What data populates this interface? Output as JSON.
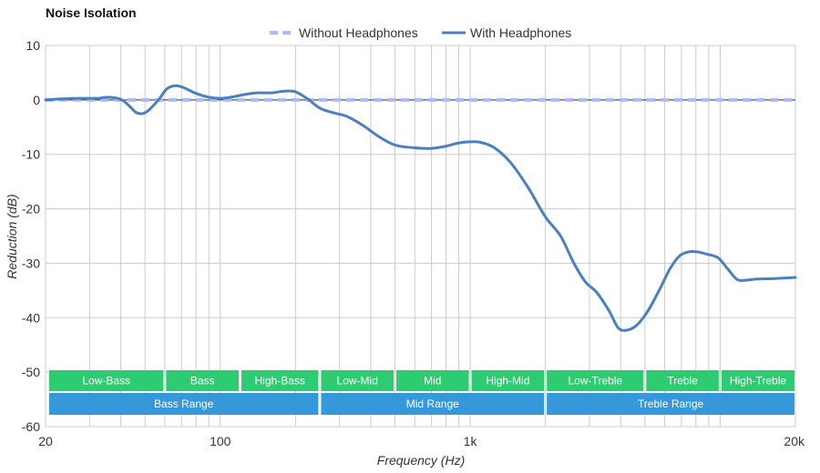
{
  "chart_data": {
    "type": "line",
    "title": "Noise Isolation",
    "xlabel": "Frequency (Hz)",
    "ylabel": "Reduction (dB)",
    "x_scale": "log",
    "xlim": [
      20,
      20000
    ],
    "ylim": [
      -60,
      10
    ],
    "x_ticks": [
      {
        "value": 20,
        "label": "20"
      },
      {
        "value": 100,
        "label": "100"
      },
      {
        "value": 1000,
        "label": "1k"
      },
      {
        "value": 20000,
        "label": "20k"
      }
    ],
    "y_ticks": [
      10,
      0,
      -10,
      -20,
      -30,
      -40,
      -50,
      -60
    ],
    "minor_x_gridlines": [
      30,
      40,
      50,
      60,
      70,
      80,
      90,
      200,
      300,
      400,
      500,
      600,
      700,
      800,
      900,
      2000,
      3000,
      4000,
      5000,
      6000,
      7000,
      8000,
      9000,
      10000
    ],
    "grid": true,
    "legend_position": "top-center",
    "series": [
      {
        "name": "Without Headphones",
        "style": "dashed",
        "color": "#aabbff",
        "points": [
          [
            20,
            0
          ],
          [
            20000,
            0
          ]
        ]
      },
      {
        "name": "With Headphones",
        "style": "solid",
        "color": "#4a7fc1",
        "points": [
          [
            20,
            0
          ],
          [
            23,
            0.2
          ],
          [
            27,
            0.3
          ],
          [
            32,
            0.3
          ],
          [
            36,
            0.5
          ],
          [
            40,
            0.1
          ],
          [
            43,
            -1.0
          ],
          [
            46,
            -2.3
          ],
          [
            49,
            -2.5
          ],
          [
            52,
            -1.8
          ],
          [
            57,
            0.2
          ],
          [
            61,
            2.0
          ],
          [
            66,
            2.6
          ],
          [
            71,
            2.3
          ],
          [
            80,
            1.2
          ],
          [
            90,
            0.5
          ],
          [
            100,
            0.3
          ],
          [
            110,
            0.5
          ],
          [
            125,
            1.0
          ],
          [
            140,
            1.3
          ],
          [
            160,
            1.3
          ],
          [
            180,
            1.6
          ],
          [
            200,
            1.5
          ],
          [
            225,
            0.1
          ],
          [
            250,
            -1.5
          ],
          [
            280,
            -2.3
          ],
          [
            320,
            -3.0
          ],
          [
            370,
            -4.6
          ],
          [
            430,
            -6.7
          ],
          [
            500,
            -8.3
          ],
          [
            600,
            -8.8
          ],
          [
            700,
            -8.9
          ],
          [
            800,
            -8.5
          ],
          [
            900,
            -7.9
          ],
          [
            1000,
            -7.7
          ],
          [
            1100,
            -7.8
          ],
          [
            1250,
            -8.8
          ],
          [
            1450,
            -11.5
          ],
          [
            1700,
            -16.0
          ],
          [
            2000,
            -21.5
          ],
          [
            2300,
            -25.0
          ],
          [
            2600,
            -30.0
          ],
          [
            2900,
            -33.5
          ],
          [
            3200,
            -35.3
          ],
          [
            3600,
            -38.8
          ],
          [
            3900,
            -41.8
          ],
          [
            4200,
            -42.3
          ],
          [
            4600,
            -41.5
          ],
          [
            5100,
            -39.0
          ],
          [
            5700,
            -35.0
          ],
          [
            6300,
            -31.0
          ],
          [
            6900,
            -28.6
          ],
          [
            7500,
            -27.9
          ],
          [
            8100,
            -27.9
          ],
          [
            8800,
            -28.3
          ],
          [
            9800,
            -29.0
          ],
          [
            10700,
            -31.0
          ],
          [
            11700,
            -33.0
          ],
          [
            12700,
            -33.1
          ],
          [
            14000,
            -32.9
          ],
          [
            16500,
            -32.8
          ],
          [
            20000,
            -32.6
          ]
        ]
      }
    ],
    "range_bands": [
      {
        "label": "Low-Bass",
        "from": 20,
        "to": 60,
        "row": 1
      },
      {
        "label": "Bass",
        "from": 60,
        "to": 120,
        "row": 1
      },
      {
        "label": "High-Bass",
        "from": 120,
        "to": 250,
        "row": 1
      },
      {
        "label": "Low-Mid",
        "from": 250,
        "to": 500,
        "row": 1
      },
      {
        "label": "Mid",
        "from": 500,
        "to": 1000,
        "row": 1
      },
      {
        "label": "High-Mid",
        "from": 1000,
        "to": 2000,
        "row": 1
      },
      {
        "label": "Low-Treble",
        "from": 2000,
        "to": 5000,
        "row": 1
      },
      {
        "label": "Treble",
        "from": 5000,
        "to": 10000,
        "row": 1
      },
      {
        "label": "High-Treble",
        "from": 10000,
        "to": 20000,
        "row": 1
      },
      {
        "label": "Bass Range",
        "from": 20,
        "to": 250,
        "row": 2
      },
      {
        "label": "Mid Range",
        "from": 250,
        "to": 2000,
        "row": 2
      },
      {
        "label": "Treble Range",
        "from": 2000,
        "to": 20000,
        "row": 2
      }
    ],
    "colors": {
      "band_row1": "#2ecc71",
      "band_row2": "#3498db",
      "grid": "#cccccc",
      "zero_line": "#333333"
    }
  }
}
